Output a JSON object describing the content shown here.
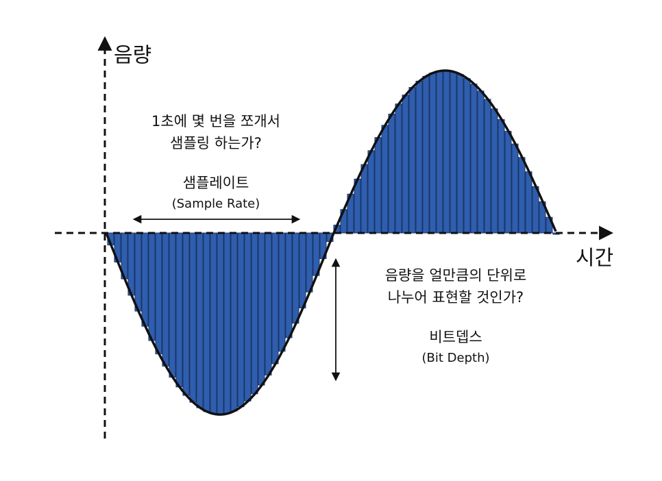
{
  "axis": {
    "y_label": "음량",
    "x_label": "시간"
  },
  "sample_rate": {
    "question": [
      "1초에 몇 번을 쪼개서",
      "샘플링 하는가?"
    ],
    "title": "샘플레이트",
    "subtitle": "(Sample Rate)"
  },
  "bit_depth": {
    "question": [
      "음량을 얼만큼의 단위로",
      "나누어 표현할 것인가?"
    ],
    "title": "비트뎁스",
    "subtitle": "(Bit Depth)"
  }
}
